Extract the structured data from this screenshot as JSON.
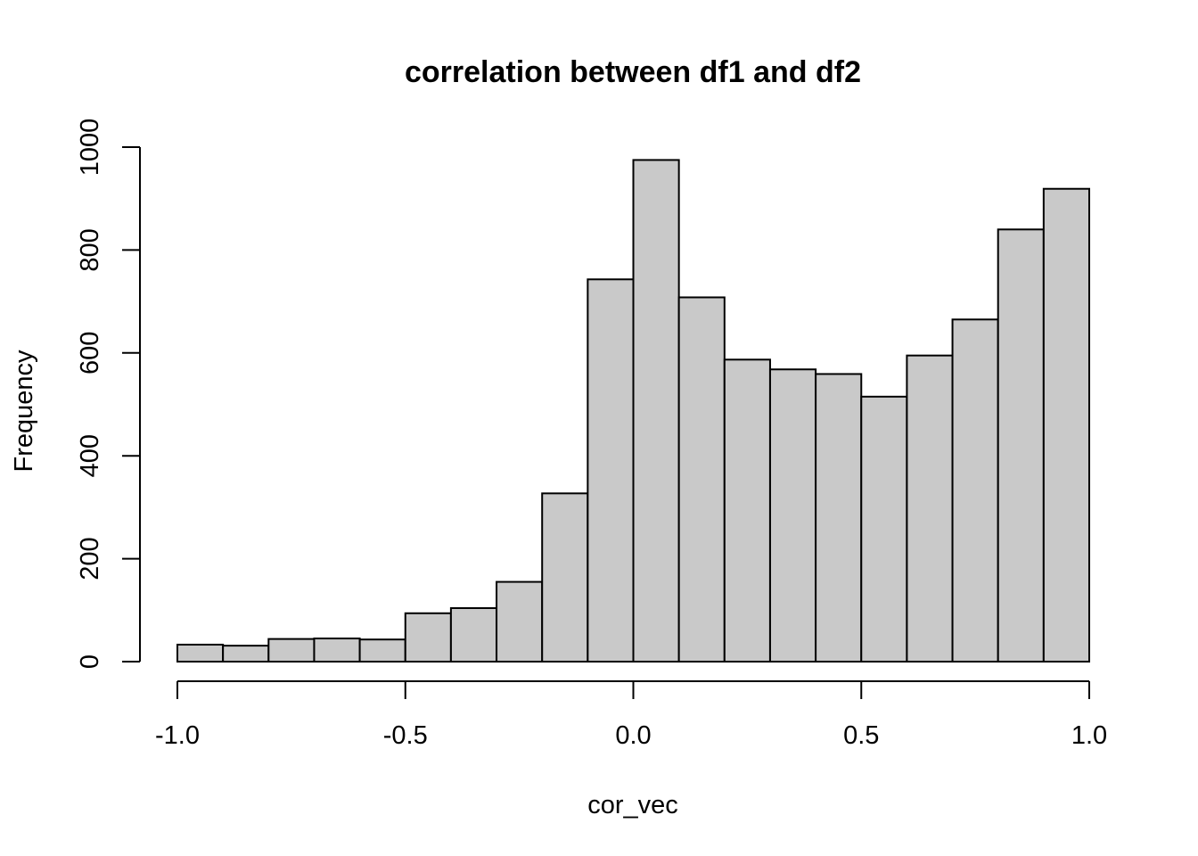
{
  "chart_data": {
    "type": "bar",
    "title": "correlation between df1 and df2",
    "xlabel": "cor_vec",
    "ylabel": "Frequency",
    "bar_color": "#c9c9c9",
    "border_color": "#000000",
    "xlim": [
      -1.0,
      1.0
    ],
    "ylim": [
      0,
      1000
    ],
    "x_ticks": [
      -1.0,
      -0.5,
      0.0,
      0.5,
      1.0
    ],
    "x_tick_labels": [
      "-1.0",
      "-0.5",
      "0.0",
      "0.5",
      "1.0"
    ],
    "y_ticks": [
      0,
      200,
      400,
      600,
      800,
      1000
    ],
    "y_tick_labels": [
      "0",
      "200",
      "400",
      "600",
      "800",
      "1000"
    ],
    "bins": [
      {
        "x0": -1.0,
        "x1": -0.9,
        "count": 33
      },
      {
        "x0": -0.9,
        "x1": -0.8,
        "count": 31
      },
      {
        "x0": -0.8,
        "x1": -0.7,
        "count": 44
      },
      {
        "x0": -0.7,
        "x1": -0.6,
        "count": 45
      },
      {
        "x0": -0.6,
        "x1": -0.5,
        "count": 43
      },
      {
        "x0": -0.5,
        "x1": -0.4,
        "count": 94
      },
      {
        "x0": -0.4,
        "x1": -0.3,
        "count": 104
      },
      {
        "x0": -0.3,
        "x1": -0.2,
        "count": 155
      },
      {
        "x0": -0.2,
        "x1": -0.1,
        "count": 327
      },
      {
        "x0": -0.1,
        "x1": 0.0,
        "count": 743
      },
      {
        "x0": 0.0,
        "x1": 0.1,
        "count": 975
      },
      {
        "x0": 0.1,
        "x1": 0.2,
        "count": 708
      },
      {
        "x0": 0.2,
        "x1": 0.3,
        "count": 587
      },
      {
        "x0": 0.3,
        "x1": 0.4,
        "count": 568
      },
      {
        "x0": 0.4,
        "x1": 0.5,
        "count": 559
      },
      {
        "x0": 0.5,
        "x1": 0.6,
        "count": 515
      },
      {
        "x0": 0.6,
        "x1": 0.7,
        "count": 595
      },
      {
        "x0": 0.7,
        "x1": 0.8,
        "count": 665
      },
      {
        "x0": 0.8,
        "x1": 0.9,
        "count": 840
      },
      {
        "x0": 0.9,
        "x1": 1.0,
        "count": 919
      }
    ]
  }
}
